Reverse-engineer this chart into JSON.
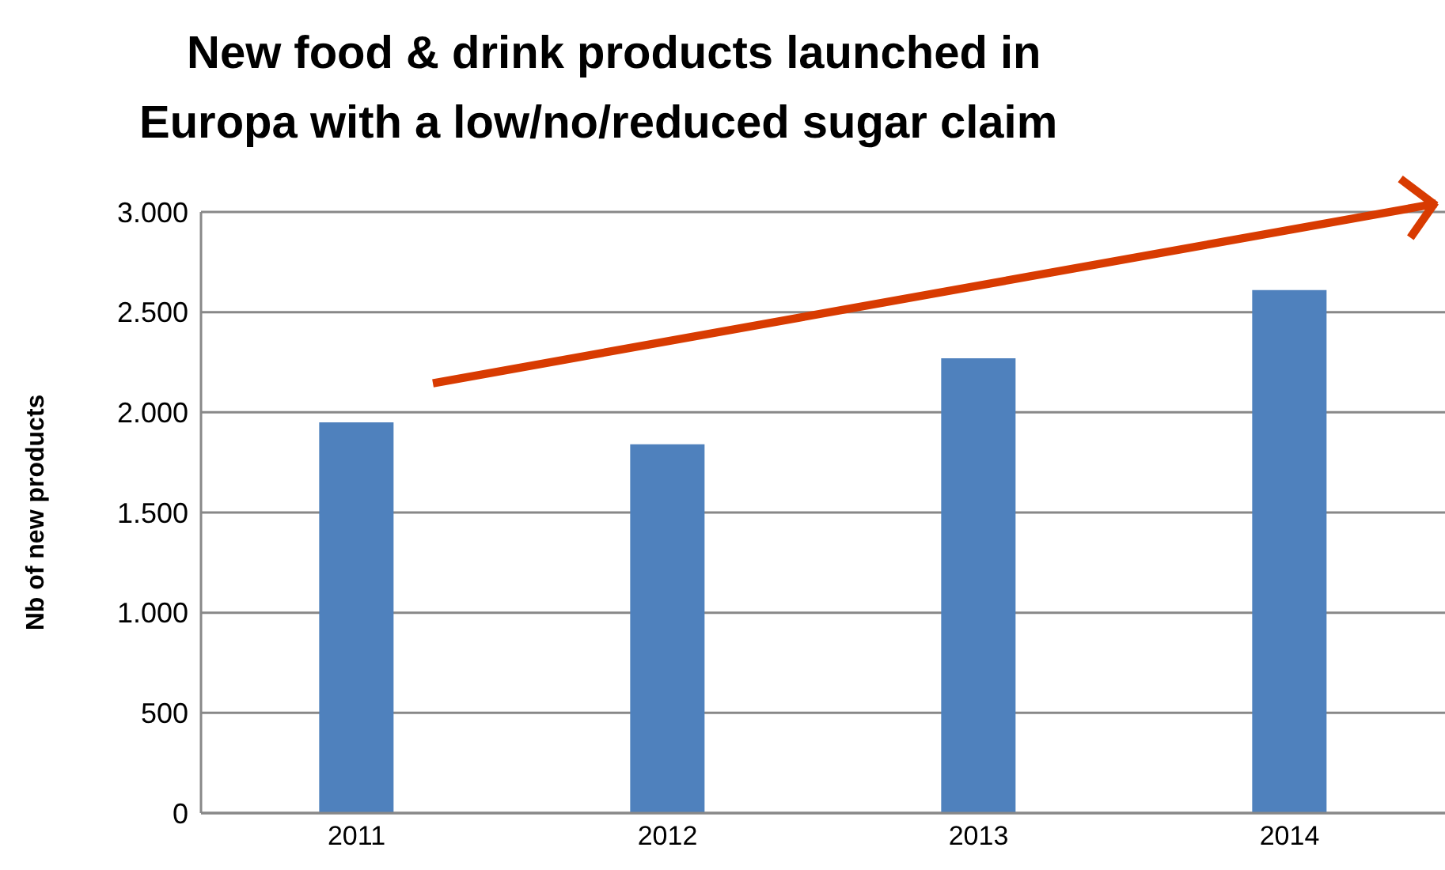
{
  "chart_data": {
    "type": "bar",
    "title": "New food & drink products launched in\nEuropa with a low/no/reduced sugar claim",
    "ylabel": "Nb of new products",
    "categories": [
      "2011",
      "2012",
      "2013",
      "2014"
    ],
    "values": [
      1950,
      1840,
      2270,
      2610
    ],
    "color": "#4f81bd",
    "ylim": [
      0,
      3000
    ],
    "yticks": [
      0,
      500,
      {
        "value": 1000,
        "label": "1.000"
      },
      {
        "value": 1500,
        "label": "1.500"
      },
      {
        "value": 2000,
        "label": "2.000"
      },
      {
        "value": 2500,
        "label": "2.500"
      },
      {
        "value": 3000,
        "label": "3.000"
      }
    ],
    "grid": "y",
    "legend": false
  }
}
